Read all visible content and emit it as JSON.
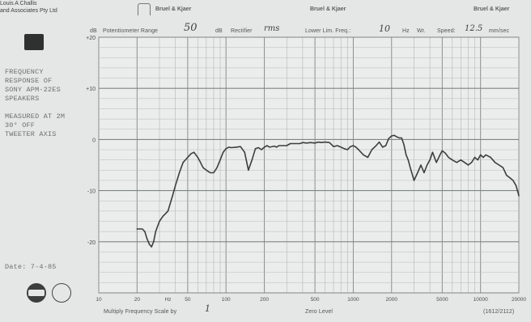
{
  "header": {
    "company_line1": "Louis A Challis",
    "company_line2": "and Associates Pty Ltd",
    "brand_left": "Bruel & Kjaer",
    "brand_center": "Bruel & Kjaer",
    "brand_right": "Bruel & Kjaer",
    "settings_line": {
      "db_label": "dB",
      "pot_label": "Potentiometer Range",
      "pot_value": "50",
      "db_unit": "dB",
      "rectifier_label": "Rectifier",
      "rectifier_value": "rms",
      "lower_lim_label": "Lower Lim. Freq.:",
      "lower_lim_value": "10",
      "hz_unit": "Hz",
      "wr_label": "Wr.",
      "speed_label": "Speed:",
      "speed_value": "12.5",
      "speed_unit": "mm/sec"
    }
  },
  "annotation": {
    "lines": [
      "FREQUENCY",
      "RESPONSE OF",
      "SONY APM-22ES",
      "SPEAKERS",
      "",
      "MEASURED AT 2M",
      "30° OFF",
      "TWEETER AXIS"
    ],
    "date": "Date: 7-4-85"
  },
  "footer": {
    "multiply_label": "Multiply Frequency Scale by",
    "multiply_value": "1",
    "zero_level": "Zero Level",
    "form_number": "(1612/2112)"
  },
  "chart_data": {
    "type": "line",
    "xscale": "log",
    "xlim": [
      10,
      20000
    ],
    "ylim": [
      -30,
      20
    ],
    "ylabel": "",
    "xlabel": "",
    "grid": true,
    "x_ticks": [
      "10",
      "20",
      "50",
      "100",
      "200",
      "500",
      "1000",
      "2000",
      "5000",
      "10000",
      "20000"
    ],
    "x_tick_values": [
      10,
      20,
      50,
      100,
      200,
      500,
      1000,
      2000,
      5000,
      10000,
      20000
    ],
    "hz_label": "Hz",
    "y_ticks": [
      "+20",
      "+10",
      "0",
      "-10",
      "-20"
    ],
    "y_tick_values": [
      20,
      10,
      0,
      -10,
      -20
    ],
    "series": [
      {
        "color": "#3a3f3e",
        "x": [
          20,
          21,
          22,
          23,
          24,
          25,
          26,
          27,
          28,
          30,
          32,
          35,
          38,
          40,
          43,
          46,
          50,
          53,
          56,
          60,
          63,
          66,
          70,
          75,
          80,
          85,
          90,
          95,
          100,
          105,
          110,
          120,
          130,
          140,
          150,
          160,
          170,
          180,
          190,
          200,
          210,
          220,
          240,
          250,
          260,
          280,
          300,
          320,
          350,
          380,
          400,
          430,
          460,
          500,
          530,
          560,
          600,
          650,
          700,
          750,
          800,
          850,
          900,
          950,
          1000,
          1050,
          1100,
          1200,
          1300,
          1400,
          1500,
          1600,
          1700,
          1800,
          1900,
          2000,
          2100,
          2200,
          2300,
          2400,
          2500,
          2600,
          2700,
          2800,
          3000,
          3200,
          3400,
          3600,
          3800,
          4000,
          4200,
          4500,
          4800,
          5000,
          5300,
          5600,
          6000,
          6500,
          7000,
          7500,
          8000,
          8500,
          9000,
          9500,
          10000,
          10500,
          11000,
          12000,
          13000,
          14000,
          15000,
          16000,
          17000,
          18000,
          19000,
          20000
        ],
        "y": [
          -17.5,
          -17.5,
          -17.5,
          -18,
          -19.5,
          -20.5,
          -21,
          -20,
          -18,
          -16,
          -15,
          -14,
          -11,
          -9,
          -6.5,
          -4.5,
          -3.5,
          -2.8,
          -2.5,
          -3.5,
          -4.5,
          -5.5,
          -6,
          -6.5,
          -6.5,
          -5.5,
          -4,
          -2.5,
          -1.8,
          -1.5,
          -1.6,
          -1.5,
          -1.4,
          -2.5,
          -6,
          -4,
          -1.8,
          -1.6,
          -2,
          -1.5,
          -1.2,
          -1.5,
          -1.3,
          -1.5,
          -1.2,
          -1.2,
          -1.2,
          -0.8,
          -0.8,
          -0.8,
          -0.6,
          -0.7,
          -0.6,
          -0.7,
          -0.5,
          -0.6,
          -0.5,
          -0.6,
          -1.4,
          -1.2,
          -1.5,
          -1.8,
          -2,
          -1.4,
          -1.2,
          -1.5,
          -2,
          -3,
          -3.5,
          -2,
          -1.3,
          -0.5,
          -1.5,
          -1.2,
          0.2,
          0.7,
          0.8,
          0.5,
          0.3,
          0.3,
          -1,
          -3,
          -4,
          -5.5,
          -8,
          -6.5,
          -5,
          -6.5,
          -5,
          -4,
          -2.5,
          -4.5,
          -3,
          -2.2,
          -2.7,
          -3.5,
          -4,
          -4.5,
          -4,
          -4.5,
          -5,
          -4.5,
          -3.5,
          -4,
          -3,
          -3.5,
          -3,
          -3.5,
          -4.5,
          -5,
          -5.5,
          -7,
          -7.5,
          -8,
          -9,
          -11
        ]
      }
    ]
  }
}
